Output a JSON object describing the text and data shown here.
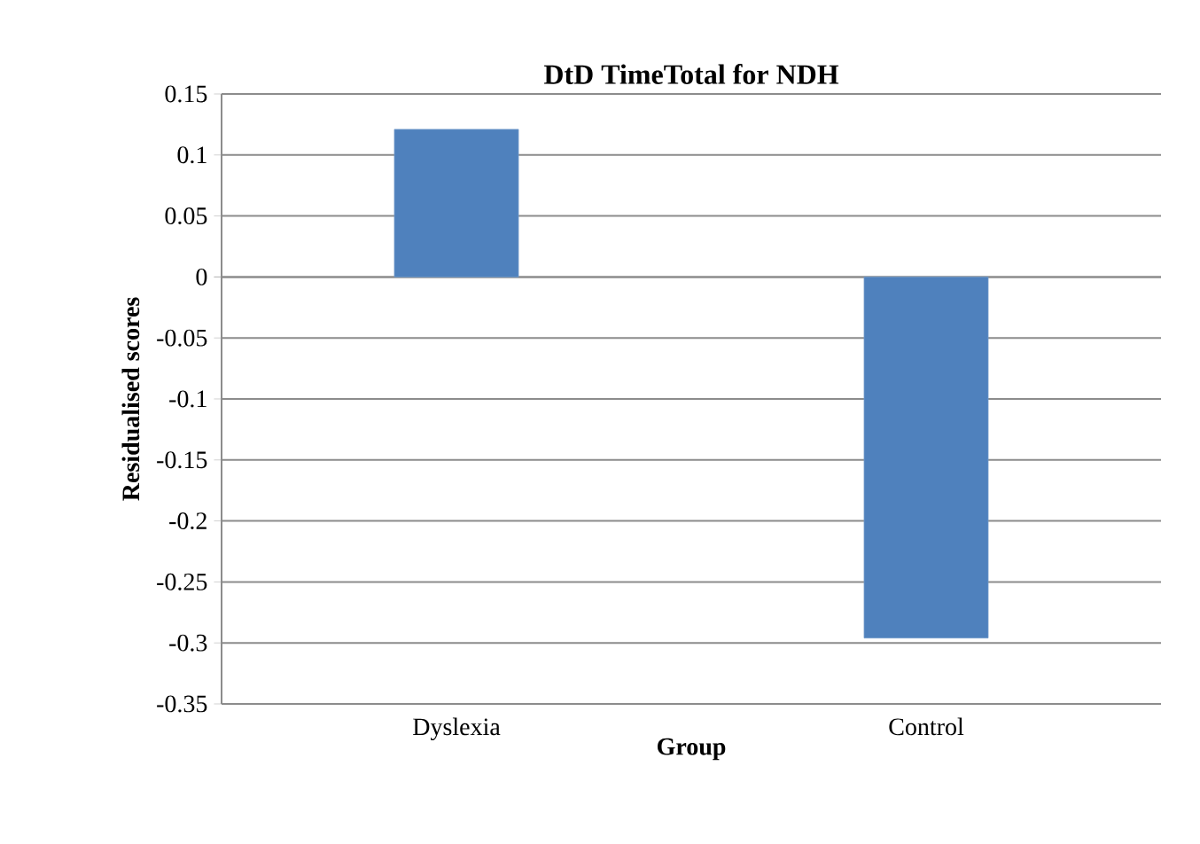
{
  "chart_data": {
    "type": "bar",
    "title": "DtD TimeTotal for NDH",
    "xlabel": "Group",
    "ylabel": "Residualised scores",
    "categories": [
      "Dyslexia",
      "Control"
    ],
    "values": [
      0.121,
      -0.296
    ],
    "color": "#4f81bd",
    "ylim": [
      -0.35,
      0.15
    ],
    "yticks": [
      {
        "value": -0.35,
        "label": "-0.35"
      },
      {
        "value": -0.3,
        "label": "-0.3"
      },
      {
        "value": -0.25,
        "label": "-0.25"
      },
      {
        "value": -0.2,
        "label": "-0.2"
      },
      {
        "value": -0.15,
        "label": "-0.15"
      },
      {
        "value": -0.1,
        "label": "-0.1"
      },
      {
        "value": -0.05,
        "label": "-0.05"
      },
      {
        "value": 0,
        "label": "0"
      },
      {
        "value": 0.05,
        "label": "0.05"
      },
      {
        "value": 0.1,
        "label": "0.1"
      },
      {
        "value": 0.15,
        "label": "0.15"
      }
    ],
    "grid": "y"
  }
}
